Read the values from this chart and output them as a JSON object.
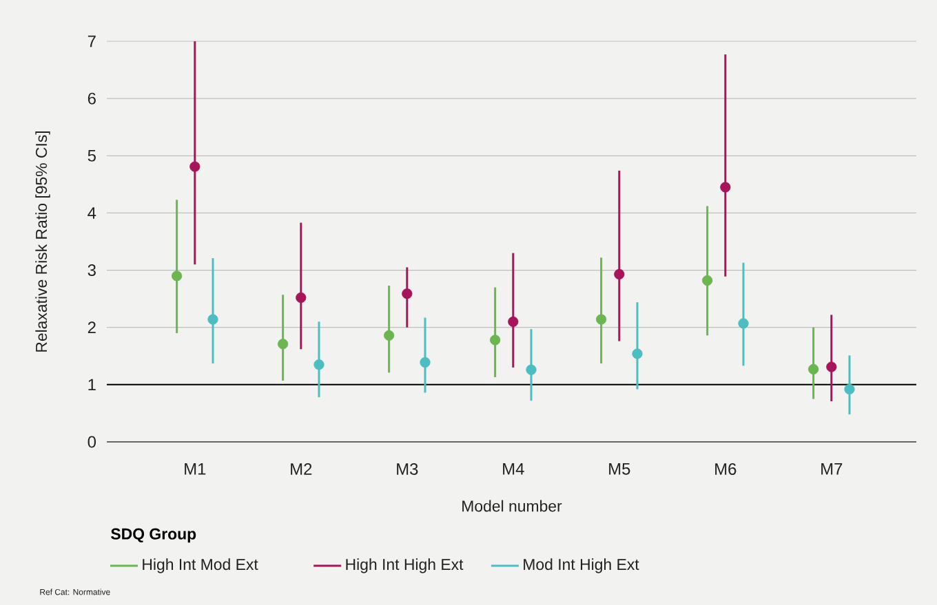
{
  "chart_data": {
    "type": "scatter",
    "xlabel": "Model number",
    "ylabel": "Relaxative Risk Ratio [95% CIs]",
    "legend_title": "SDQ Group",
    "categories": [
      "M1",
      "M2",
      "M3",
      "M4",
      "M5",
      "M6",
      "M7"
    ],
    "series": [
      {
        "name": "High Int Mod Ext",
        "color": "#6ab74f",
        "values": [
          2.9,
          1.71,
          1.86,
          1.78,
          2.14,
          2.82,
          1.27
        ],
        "errors": [
          [
            1.9,
            4.23
          ],
          [
            1.07,
            2.57
          ],
          [
            1.21,
            2.73
          ],
          [
            1.13,
            2.7
          ],
          [
            1.37,
            3.22
          ],
          [
            1.86,
            4.12
          ],
          [
            0.75,
            2.0
          ]
        ]
      },
      {
        "name": "High Int High Ext",
        "color": "#a8145a",
        "values": [
          4.81,
          2.52,
          2.59,
          2.1,
          2.93,
          4.45,
          1.31
        ],
        "errors": [
          [
            3.1,
            7.0
          ],
          [
            1.62,
            3.83
          ],
          [
            2.0,
            3.05
          ],
          [
            1.3,
            3.3
          ],
          [
            1.76,
            4.74
          ],
          [
            2.89,
            6.77
          ],
          [
            0.71,
            2.22
          ]
        ]
      },
      {
        "name": "Mod Int High Ext",
        "color": "#4bbec1",
        "values": [
          2.14,
          1.35,
          1.39,
          1.26,
          1.54,
          2.07,
          0.92
        ],
        "errors": [
          [
            1.37,
            3.21
          ],
          [
            0.78,
            2.1
          ],
          [
            0.86,
            2.17
          ],
          [
            0.72,
            1.97
          ],
          [
            0.92,
            2.44
          ],
          [
            1.33,
            3.13
          ],
          [
            0.48,
            1.51
          ]
        ]
      }
    ],
    "ylim": [
      0,
      7
    ],
    "yticks": [
      0,
      1,
      2,
      3,
      4,
      5,
      6,
      7
    ],
    "grid": "y",
    "marker": "circle",
    "legend": "bottom",
    "ref_lines": [
      {
        "axis": "y",
        "value": 1,
        "color": "#000000"
      }
    ],
    "annotations": [
      "Ref Cat: Normative"
    ]
  }
}
